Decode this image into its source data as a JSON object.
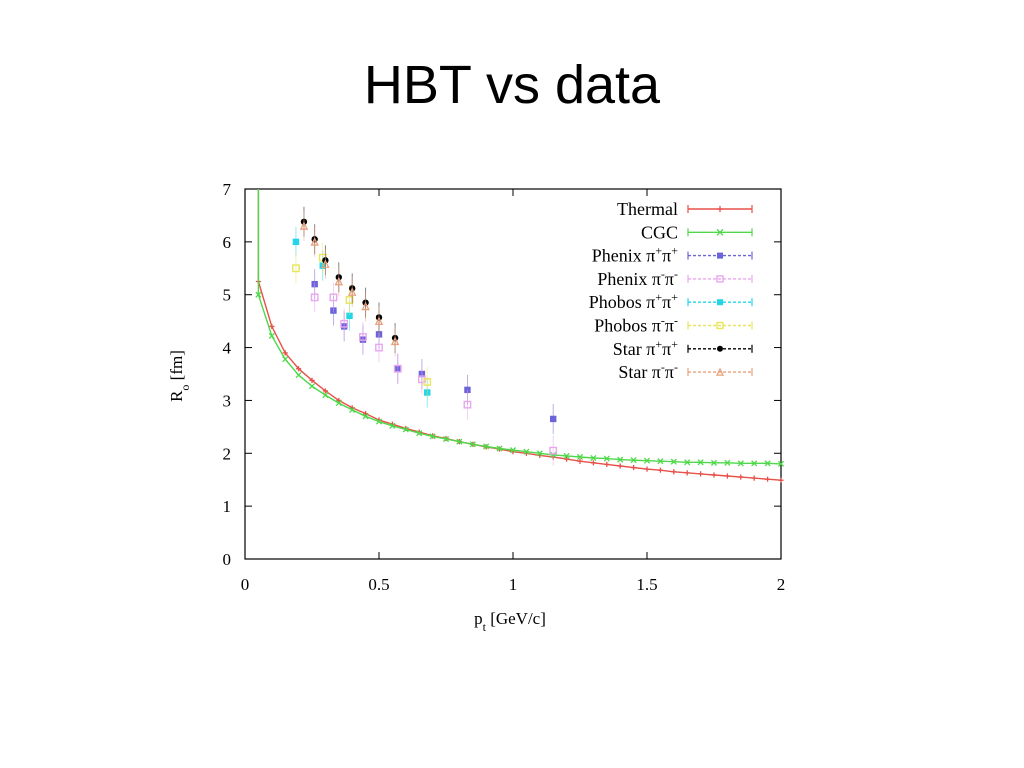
{
  "slide": {
    "title": "HBT vs data"
  },
  "chart_data": {
    "type": "scatter",
    "xlabel": "p_t [GeV/c]",
    "ylabel": "R_o [fm]",
    "xlim": [
      0,
      2
    ],
    "ylim": [
      0,
      7
    ],
    "xticks": [
      0,
      0.5,
      1,
      1.5,
      2
    ],
    "xtick_labels": [
      "0",
      "0.5",
      "1",
      "1.5",
      "2"
    ],
    "yticks": [
      0,
      1,
      2,
      3,
      4,
      5,
      6,
      7
    ],
    "ytick_labels": [
      "0",
      "1",
      "2",
      "3",
      "4",
      "5",
      "6",
      "7"
    ],
    "grid": false,
    "legend": "top-right",
    "series": [
      {
        "name": "Thermal",
        "legend_main": "Thermal",
        "legend_sup1": "",
        "legend_mid": "",
        "legend_sup2": "",
        "color": "#e8504a",
        "marker": "plus",
        "kind": "line",
        "points": [
          [
            0.05,
            5.25
          ],
          [
            0.1,
            4.4
          ],
          [
            0.15,
            3.9
          ],
          [
            0.2,
            3.6
          ],
          [
            0.25,
            3.38
          ],
          [
            0.3,
            3.18
          ],
          [
            0.35,
            3.0
          ],
          [
            0.4,
            2.86
          ],
          [
            0.45,
            2.75
          ],
          [
            0.5,
            2.63
          ],
          [
            0.55,
            2.55
          ],
          [
            0.6,
            2.47
          ],
          [
            0.65,
            2.4
          ],
          [
            0.7,
            2.33
          ],
          [
            0.75,
            2.28
          ],
          [
            0.8,
            2.22
          ],
          [
            0.85,
            2.17
          ],
          [
            0.9,
            2.12
          ],
          [
            0.95,
            2.08
          ],
          [
            1.0,
            2.03
          ],
          [
            1.05,
            2.0
          ],
          [
            1.1,
            1.96
          ],
          [
            1.15,
            1.93
          ],
          [
            1.2,
            1.89
          ],
          [
            1.25,
            1.85
          ],
          [
            1.3,
            1.82
          ],
          [
            1.35,
            1.79
          ],
          [
            1.4,
            1.76
          ],
          [
            1.45,
            1.73
          ],
          [
            1.5,
            1.7
          ],
          [
            1.55,
            1.68
          ],
          [
            1.6,
            1.65
          ],
          [
            1.65,
            1.63
          ],
          [
            1.7,
            1.61
          ],
          [
            1.75,
            1.59
          ],
          [
            1.8,
            1.57
          ],
          [
            1.85,
            1.55
          ],
          [
            1.9,
            1.53
          ],
          [
            1.95,
            1.51
          ],
          [
            2.0,
            1.49
          ]
        ]
      },
      {
        "name": "CGC",
        "legend_main": "CGC",
        "legend_sup1": "",
        "legend_mid": "",
        "legend_sup2": "",
        "color": "#4fd84a",
        "marker": "x",
        "kind": "line",
        "points": [
          [
            0.05,
            5.0
          ],
          [
            0.1,
            4.22
          ],
          [
            0.15,
            3.78
          ],
          [
            0.2,
            3.48
          ],
          [
            0.25,
            3.27
          ],
          [
            0.3,
            3.1
          ],
          [
            0.35,
            2.95
          ],
          [
            0.4,
            2.82
          ],
          [
            0.45,
            2.7
          ],
          [
            0.5,
            2.6
          ],
          [
            0.55,
            2.52
          ],
          [
            0.6,
            2.45
          ],
          [
            0.65,
            2.38
          ],
          [
            0.7,
            2.32
          ],
          [
            0.75,
            2.27
          ],
          [
            0.8,
            2.22
          ],
          [
            0.85,
            2.17
          ],
          [
            0.9,
            2.13
          ],
          [
            0.95,
            2.09
          ],
          [
            1.0,
            2.06
          ],
          [
            1.05,
            2.03
          ],
          [
            1.1,
            2.0
          ],
          [
            1.15,
            1.97
          ],
          [
            1.2,
            1.95
          ],
          [
            1.25,
            1.93
          ],
          [
            1.3,
            1.91
          ],
          [
            1.35,
            1.9
          ],
          [
            1.4,
            1.88
          ],
          [
            1.45,
            1.87
          ],
          [
            1.5,
            1.86
          ],
          [
            1.55,
            1.85
          ],
          [
            1.6,
            1.84
          ],
          [
            1.65,
            1.83
          ],
          [
            1.7,
            1.83
          ],
          [
            1.75,
            1.82
          ],
          [
            1.8,
            1.82
          ],
          [
            1.85,
            1.81
          ],
          [
            1.9,
            1.81
          ],
          [
            1.95,
            1.81
          ],
          [
            2.0,
            1.8
          ]
        ]
      },
      {
        "name": "Phenix π+π+",
        "legend_main": "Phenix π",
        "legend_sup1": "+",
        "legend_mid": "π",
        "legend_sup2": "+",
        "color": "#6b63d8",
        "marker": "filled-square",
        "kind": "points",
        "points": [
          [
            0.26,
            5.2
          ],
          [
            0.33,
            4.7
          ],
          [
            0.37,
            4.4
          ],
          [
            0.44,
            4.15
          ],
          [
            0.5,
            4.25
          ],
          [
            0.57,
            3.6
          ],
          [
            0.66,
            3.5
          ],
          [
            0.83,
            3.2
          ],
          [
            1.15,
            2.65
          ]
        ]
      },
      {
        "name": "Phenix π-π-",
        "legend_main": "Phenix π",
        "legend_sup1": "-",
        "legend_mid": "π",
        "legend_sup2": "-",
        "color": "#e9a6ee",
        "marker": "open-square",
        "kind": "points",
        "points": [
          [
            0.26,
            4.95
          ],
          [
            0.33,
            4.95
          ],
          [
            0.37,
            4.45
          ],
          [
            0.44,
            4.2
          ],
          [
            0.5,
            4.0
          ],
          [
            0.57,
            3.6
          ],
          [
            0.66,
            3.4
          ],
          [
            0.83,
            2.92
          ],
          [
            1.15,
            2.05
          ]
        ]
      },
      {
        "name": "Phobos π+π+",
        "legend_main": "Phobos π",
        "legend_sup1": "+",
        "legend_mid": "π",
        "legend_sup2": "+",
        "color": "#22d6e8",
        "marker": "filled-square",
        "kind": "points",
        "points": [
          [
            0.19,
            6.0
          ],
          [
            0.29,
            5.55
          ],
          [
            0.39,
            4.6
          ],
          [
            0.68,
            3.15
          ]
        ]
      },
      {
        "name": "Phobos π-π-",
        "legend_main": "Phobos π",
        "legend_sup1": "-",
        "legend_mid": "π",
        "legend_sup2": "-",
        "color": "#e8e65c",
        "marker": "open-square",
        "kind": "points",
        "points": [
          [
            0.19,
            5.5
          ],
          [
            0.29,
            5.7
          ],
          [
            0.39,
            4.9
          ],
          [
            0.68,
            3.35
          ]
        ]
      },
      {
        "name": "Star π+π+",
        "legend_main": "Star π",
        "legend_sup1": "+",
        "legend_mid": "π",
        "legend_sup2": "+",
        "color": "#000000",
        "marker": "filled-circle",
        "kind": "points",
        "points": [
          [
            0.22,
            6.38
          ],
          [
            0.26,
            6.05
          ],
          [
            0.3,
            5.65
          ],
          [
            0.35,
            5.33
          ],
          [
            0.4,
            5.12
          ],
          [
            0.45,
            4.85
          ],
          [
            0.5,
            4.57
          ],
          [
            0.56,
            4.18
          ]
        ]
      },
      {
        "name": "Star π-π-",
        "legend_main": "Star π",
        "legend_sup1": "-",
        "legend_mid": "π",
        "legend_sup2": "-",
        "color": "#e9a07a",
        "marker": "triangle",
        "kind": "points",
        "points": [
          [
            0.22,
            6.3
          ],
          [
            0.26,
            6.0
          ],
          [
            0.3,
            5.58
          ],
          [
            0.35,
            5.25
          ],
          [
            0.4,
            5.05
          ],
          [
            0.45,
            4.78
          ],
          [
            0.5,
            4.5
          ],
          [
            0.56,
            4.12
          ]
        ]
      }
    ]
  }
}
